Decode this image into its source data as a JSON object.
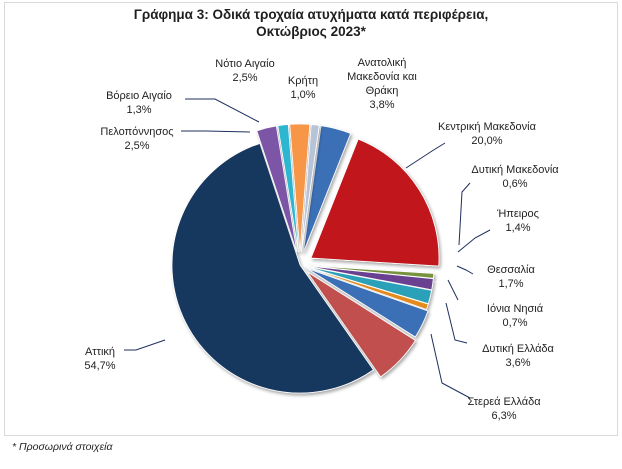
{
  "chart_data": {
    "type": "pie",
    "title_line1": "Γράφημα 3: Οδικά τροχαία ατυχήματα κατά περιφέρεια,",
    "title_line2": "Οκτώβριος 2023*",
    "slices": [
      {
        "name": "Ανατολική Μακεδονία και Θράκη",
        "label_lines": [
          "Ανατολική",
          "Μακεδονία και",
          "Θράκη"
        ],
        "value": 3.8,
        "value_label": "3,8%",
        "color": "#3b6fb6"
      },
      {
        "name": "Κεντρική Μακεδονία",
        "label_lines": [
          "Κεντρική Μακεδονία"
        ],
        "value": 20.0,
        "value_label": "20,0%",
        "color": "#c0191d"
      },
      {
        "name": "Δυτική Μακεδονία",
        "label_lines": [
          "Δυτική Μακεδονία"
        ],
        "value": 0.6,
        "value_label": "0,6%",
        "color": "#77933c"
      },
      {
        "name": "Ήπειρος",
        "label_lines": [
          "Ήπειρος"
        ],
        "value": 1.4,
        "value_label": "1,4%",
        "color": "#6a3f91"
      },
      {
        "name": "Θεσσαλία",
        "label_lines": [
          "Θεσσαλία"
        ],
        "value": 1.7,
        "value_label": "1,7%",
        "color": "#2aa1b8"
      },
      {
        "name": "Ιόνια Νησιά",
        "label_lines": [
          "Ιόνια Νησιά"
        ],
        "value": 0.7,
        "value_label": "0,7%",
        "color": "#e58a1f"
      },
      {
        "name": "Δυτική Ελλάδα",
        "label_lines": [
          "Δυτική Ελλάδα"
        ],
        "value": 3.6,
        "value_label": "3,6%",
        "color": "#3b6fb6"
      },
      {
        "name": "Στερεά Ελλάδα",
        "label_lines": [
          "Στερεά Ελλάδα"
        ],
        "value": 6.3,
        "value_label": "6,3%",
        "color": "#c0504d"
      },
      {
        "name": "Αττική",
        "label_lines": [
          "Αττική"
        ],
        "value": 54.7,
        "value_label": "54,7%",
        "color": "#17375e"
      },
      {
        "name": "Πελοπόννησος",
        "label_lines": [
          "Πελοπόννησος"
        ],
        "value": 2.5,
        "value_label": "2,5%",
        "color": "#7b55a6"
      },
      {
        "name": "Βόρειο Αιγαίο",
        "label_lines": [
          "Βόρειο Αιγαίο"
        ],
        "value": 1.3,
        "value_label": "1,3%",
        "color": "#2fb5cf"
      },
      {
        "name": "Νότιο Αιγαίο",
        "label_lines": [
          "Νότιο Αιγαίο"
        ],
        "value": 2.5,
        "value_label": "2,5%",
        "color": "#f79646"
      },
      {
        "name": "Κρήτη",
        "label_lines": [
          "Κρήτη"
        ],
        "value": 1.0,
        "value_label": "1,0%",
        "color": "#b7c4d8"
      }
    ],
    "legend": "none"
  },
  "footnote": "* Προσωρινά στοιχεία"
}
